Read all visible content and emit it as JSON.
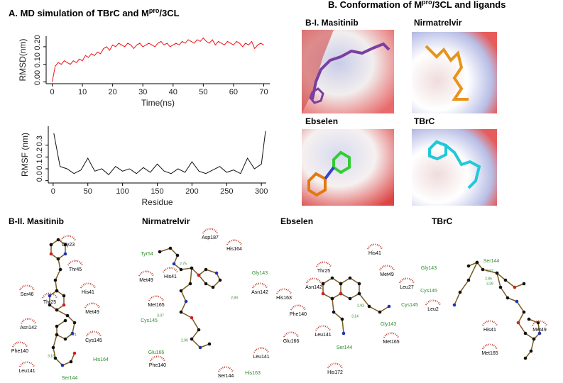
{
  "panel_a": {
    "title": {
      "main": "A. MD simulation of TBrC and M",
      "sup": "pro",
      "tail": "/3CL"
    }
  },
  "chart_data": [
    {
      "type": "line",
      "xlabel": "Time(ns)",
      "ylabel": "RMSD(nm)",
      "x": [
        0,
        1,
        2,
        3,
        4,
        5,
        6,
        7,
        8,
        9,
        10,
        11,
        12,
        13,
        14,
        15,
        16,
        17,
        18,
        19,
        20,
        21,
        22,
        23,
        24,
        25,
        26,
        27,
        28,
        29,
        30,
        31,
        32,
        33,
        34,
        35,
        36,
        37,
        38,
        39,
        40,
        41,
        42,
        43,
        44,
        45,
        46,
        47,
        48,
        49,
        50,
        51,
        52,
        53,
        54,
        55,
        56,
        57,
        58,
        59,
        60,
        61,
        62,
        63,
        64,
        65,
        66,
        67,
        68,
        69,
        70
      ],
      "series": [
        {
          "color": "#ee1111",
          "values": [
            0.0,
            0.09,
            0.11,
            0.1,
            0.12,
            0.11,
            0.1,
            0.12,
            0.11,
            0.13,
            0.12,
            0.15,
            0.14,
            0.16,
            0.15,
            0.17,
            0.16,
            0.19,
            0.2,
            0.18,
            0.21,
            0.2,
            0.22,
            0.21,
            0.2,
            0.22,
            0.21,
            0.19,
            0.21,
            0.22,
            0.2,
            0.21,
            0.22,
            0.21,
            0.2,
            0.22,
            0.23,
            0.21,
            0.22,
            0.2,
            0.21,
            0.22,
            0.21,
            0.23,
            0.22,
            0.24,
            0.23,
            0.22,
            0.24,
            0.23,
            0.25,
            0.23,
            0.22,
            0.24,
            0.21,
            0.23,
            0.22,
            0.21,
            0.23,
            0.22,
            0.21,
            0.23,
            0.22,
            0.2,
            0.22,
            0.21,
            0.23,
            0.19,
            0.21,
            0.22,
            0.21
          ]
        }
      ],
      "xlim": [
        -2,
        72
      ],
      "ylim": [
        -0.01,
        0.26
      ],
      "xticks": [
        0,
        10,
        20,
        30,
        40,
        50,
        60,
        70
      ],
      "yticks": [
        {
          "value": 0,
          "label": "0.00"
        },
        {
          "value": 0.1,
          "label": "0.10"
        },
        {
          "value": 0.2,
          "label": "0.20"
        }
      ]
    },
    {
      "type": "line",
      "xlabel": "Residue",
      "ylabel": "RMSF (nm)",
      "x": [
        1,
        10,
        20,
        30,
        40,
        50,
        60,
        70,
        80,
        90,
        100,
        110,
        120,
        130,
        140,
        150,
        160,
        170,
        180,
        190,
        200,
        210,
        220,
        230,
        240,
        250,
        260,
        270,
        280,
        290,
        300,
        306
      ],
      "series": [
        {
          "color": "#111111",
          "values": [
            0.4,
            0.12,
            0.1,
            0.06,
            0.09,
            0.19,
            0.08,
            0.1,
            0.05,
            0.12,
            0.08,
            0.1,
            0.06,
            0.11,
            0.07,
            0.14,
            0.08,
            0.06,
            0.1,
            0.07,
            0.16,
            0.08,
            0.06,
            0.09,
            0.12,
            0.07,
            0.09,
            0.06,
            0.19,
            0.1,
            0.14,
            0.42
          ]
        }
      ],
      "xlim": [
        -7,
        307
      ],
      "ylim": [
        -0.02,
        0.46
      ],
      "xticks": [
        0,
        50,
        100,
        150,
        200,
        250,
        300
      ],
      "yticks": [
        {
          "value": 0,
          "label": "0.0"
        },
        0.1,
        0.2,
        0.3
      ]
    }
  ],
  "panel_b": {
    "title": {
      "main": "B. Conformation of M",
      "sup": "pro",
      "tail": "/3CL and ligands"
    },
    "structures": [
      "B-I. Masitinib",
      "Nirmatrelvir",
      "Ebselen",
      "TBrC"
    ]
  },
  "interactions": [
    {
      "title": "B-II. Masitinib",
      "residues": [
        {
          "label": "Gly23",
          "color": "#000000"
        },
        {
          "label": "Thr45",
          "color": "#000000"
        },
        {
          "label": "Ser46",
          "color": "#000000"
        },
        {
          "label": "His41",
          "color": "#000000"
        },
        {
          "label": "Thr25",
          "color": "#000000"
        },
        {
          "label": "Met49",
          "color": "#000000"
        },
        {
          "label": "Asn142",
          "color": "#000000"
        },
        {
          "label": "Cys145",
          "color": "#000000"
        },
        {
          "label": "Phe140",
          "color": "#000000"
        },
        {
          "label": "His164",
          "color": "#2e8b2e"
        },
        {
          "label": "Leu141",
          "color": "#000000"
        },
        {
          "label": "Ser144",
          "color": "#2e8b2e"
        }
      ],
      "distances": [
        3.21,
        3.18
      ]
    },
    {
      "title": "Nirmatrelvir",
      "residues": [
        {
          "label": "Tyr54",
          "color": "#2e8b2e"
        },
        {
          "label": "Asp187",
          "color": "#000000"
        },
        {
          "label": "His164",
          "color": "#000000"
        },
        {
          "label": "Met49",
          "color": "#000000"
        },
        {
          "label": "His41",
          "color": "#000000"
        },
        {
          "label": "Met165",
          "color": "#000000"
        },
        {
          "label": "Gly143",
          "color": "#2e8b2e"
        },
        {
          "label": "Cys145",
          "color": "#2e8b2e"
        },
        {
          "label": "Asn142",
          "color": "#000000"
        },
        {
          "label": "Glu166",
          "color": "#2e8b2e"
        },
        {
          "label": "Phe140",
          "color": "#000000"
        },
        {
          "label": "Leu141",
          "color": "#000000"
        },
        {
          "label": "Ser144",
          "color": "#000000"
        },
        {
          "label": "His163",
          "color": "#2e8b2e"
        }
      ],
      "distances": [
        2.75,
        2.89,
        3.07,
        2.96
      ]
    },
    {
      "title": "Ebselen",
      "residues": [
        {
          "label": "His41",
          "color": "#000000"
        },
        {
          "label": "Thr25",
          "color": "#000000"
        },
        {
          "label": "Met49",
          "color": "#000000"
        },
        {
          "label": "Asn142",
          "color": "#000000"
        },
        {
          "label": "Leu27",
          "color": "#000000"
        },
        {
          "label": "His163",
          "color": "#000000"
        },
        {
          "label": "Cys145",
          "color": "#2e8b2e"
        },
        {
          "label": "Phe140",
          "color": "#000000"
        },
        {
          "label": "Gly143",
          "color": "#2e8b2e"
        },
        {
          "label": "Leu141",
          "color": "#000000"
        },
        {
          "label": "Glu166",
          "color": "#000000"
        },
        {
          "label": "Ser144",
          "color": "#2e8b2e"
        },
        {
          "label": "Met165",
          "color": "#000000"
        },
        {
          "label": "His172",
          "color": "#000000"
        }
      ],
      "distances": [
        2.93,
        3.14
      ]
    },
    {
      "title": "TBrC",
      "residues": [
        {
          "label": "Gly143",
          "color": "#2e8b2e"
        },
        {
          "label": "Ser144",
          "color": "#2e8b2e"
        },
        {
          "label": "Cys145",
          "color": "#2e8b2e"
        },
        {
          "label": "Leu2",
          "color": "#000000"
        },
        {
          "label": "His41",
          "color": "#000000"
        },
        {
          "label": "Met49",
          "color": "#000000"
        },
        {
          "label": "Met165",
          "color": "#000000"
        }
      ],
      "distances": [
        2.97,
        2.86,
        3.36
      ]
    }
  ]
}
